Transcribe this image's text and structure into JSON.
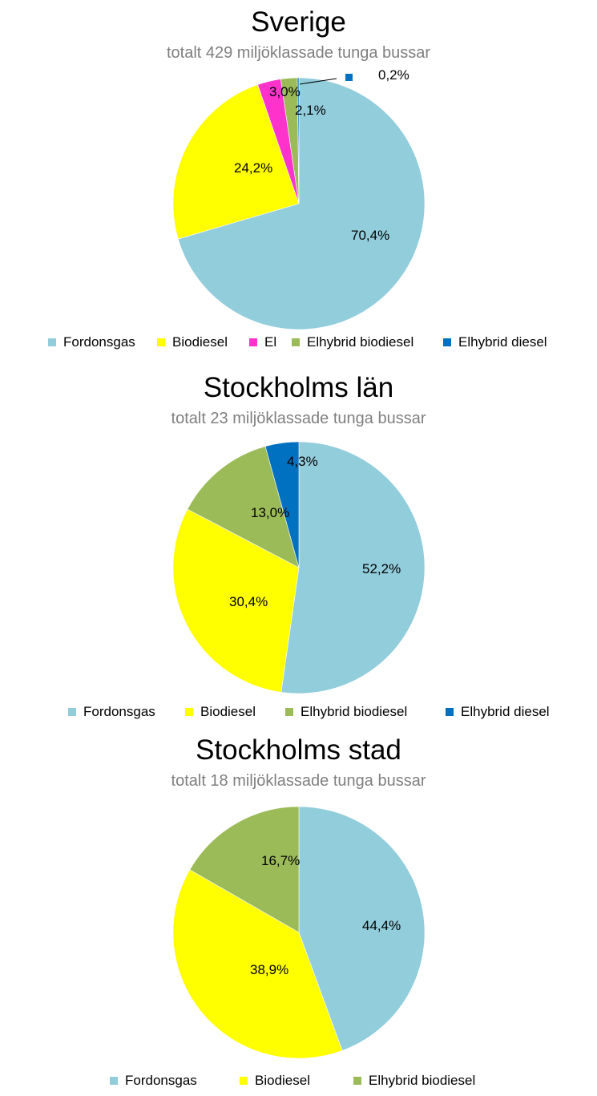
{
  "chart_data": [
    {
      "type": "pie",
      "title": "Sverige",
      "subtitle": "totalt 429 miljöklassade tunga bussar",
      "categories": [
        "Fordonsgas",
        "Biodiesel",
        "El",
        "Elhybrid biodiesel",
        "Elhybrid diesel"
      ],
      "values": [
        70.4,
        24.2,
        3.0,
        2.1,
        0.2
      ],
      "data_labels": [
        "70,4%",
        "24,2%",
        "3,0%",
        "2,1%",
        "0,2%"
      ],
      "colors": [
        "#92cddc",
        "#ffff00",
        "#ff33cc",
        "#9bbb59",
        "#0070c0"
      ],
      "legend": "bottom"
    },
    {
      "type": "pie",
      "title": "Stockholms län",
      "subtitle": "totalt 23 miljöklassade tunga bussar",
      "categories": [
        "Fordonsgas",
        "Biodiesel",
        "Elhybrid biodiesel",
        "Elhybrid diesel"
      ],
      "values": [
        52.2,
        30.4,
        13.0,
        4.3
      ],
      "data_labels": [
        "52,2%",
        "30,4%",
        "13,0%",
        "4,3%"
      ],
      "colors": [
        "#92cddc",
        "#ffff00",
        "#9bbb59",
        "#0070c0"
      ],
      "legend": "bottom"
    },
    {
      "type": "pie",
      "title": "Stockholms stad",
      "subtitle": "totalt 18 miljöklassade tunga bussar",
      "categories": [
        "Fordonsgas",
        "Biodiesel",
        "Elhybrid biodiesel"
      ],
      "values": [
        44.4,
        38.9,
        16.7
      ],
      "data_labels": [
        "44,4%",
        "38,9%",
        "16,7%"
      ],
      "colors": [
        "#92cddc",
        "#ffff00",
        "#9bbb59"
      ],
      "legend": "bottom"
    }
  ]
}
